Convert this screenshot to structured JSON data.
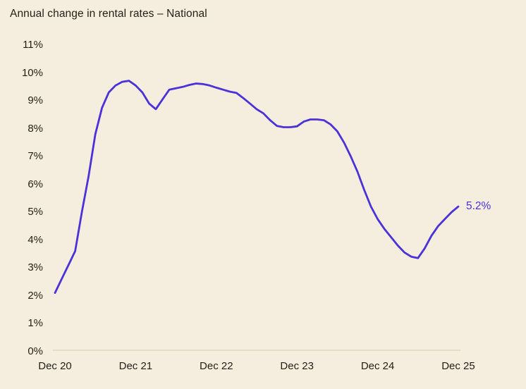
{
  "colors": {
    "background": "#f5edde",
    "line": "#4b32d8",
    "text": "#241e14",
    "axis_line": "#ddd3c2"
  },
  "chart_data": {
    "type": "line",
    "title": "Annual change in rental rates – National",
    "xlabel": "",
    "ylabel": "",
    "ylim": [
      0,
      11
    ],
    "grid": false,
    "legend": false,
    "y_tick_labels_top_to_bottom": [
      "11%",
      "10%",
      "9%",
      "8%",
      "7%",
      "6%",
      "5%",
      "4%",
      "3%",
      "2%",
      "1%",
      "0%"
    ],
    "x_tick_labels": [
      "Dec 20",
      "Dec 21",
      "Dec 22",
      "Dec 23",
      "Dec 24",
      "Dec 25"
    ],
    "annotation": {
      "text": "5.2%",
      "month": "Dec 2025",
      "value": 5.2
    },
    "months": [
      "Dec 2020",
      "Jan 2021",
      "Feb 2021",
      "Mar 2021",
      "Apr 2021",
      "May 2021",
      "Jun 2021",
      "Jul 2021",
      "Aug 2021",
      "Sep 2021",
      "Oct 2021",
      "Nov 2021",
      "Dec 2021",
      "Jan 2022",
      "Feb 2022",
      "Mar 2022",
      "Apr 2022",
      "May 2022",
      "Jun 2022",
      "Jul 2022",
      "Aug 2022",
      "Sep 2022",
      "Oct 2022",
      "Nov 2022",
      "Dec 2022",
      "Jan 2023",
      "Feb 2023",
      "Mar 2023",
      "Apr 2023",
      "May 2023",
      "Jun 2023",
      "Jul 2023",
      "Aug 2023",
      "Sep 2023",
      "Oct 2023",
      "Nov 2023",
      "Dec 2023",
      "Jan 2024",
      "Feb 2024",
      "Mar 2024",
      "Apr 2024",
      "May 2024",
      "Jun 2024",
      "Jul 2024",
      "Aug 2024",
      "Sep 2024",
      "Oct 2024",
      "Nov 2024",
      "Dec 2024",
      "Jan 2025",
      "Feb 2025",
      "Mar 2025",
      "Apr 2025",
      "May 2025",
      "Jun 2025",
      "Jul 2025",
      "Aug 2025",
      "Sep 2025",
      "Oct 2025",
      "Nov 2025",
      "Dec 2025"
    ],
    "values": [
      2.1,
      2.6,
      3.1,
      3.6,
      5.0,
      6.3,
      7.8,
      8.75,
      9.3,
      9.55,
      9.68,
      9.72,
      9.55,
      9.3,
      8.9,
      8.7,
      9.05,
      9.4,
      9.45,
      9.5,
      9.57,
      9.62,
      9.6,
      9.55,
      9.47,
      9.4,
      9.33,
      9.28,
      9.1,
      8.9,
      8.7,
      8.55,
      8.3,
      8.1,
      8.05,
      8.05,
      8.08,
      8.25,
      8.33,
      8.33,
      8.3,
      8.15,
      7.9,
      7.5,
      7.0,
      6.45,
      5.8,
      5.2,
      4.75,
      4.4,
      4.1,
      3.8,
      3.55,
      3.4,
      3.35,
      3.7,
      4.15,
      4.5,
      4.75,
      5.0,
      5.2
    ]
  }
}
